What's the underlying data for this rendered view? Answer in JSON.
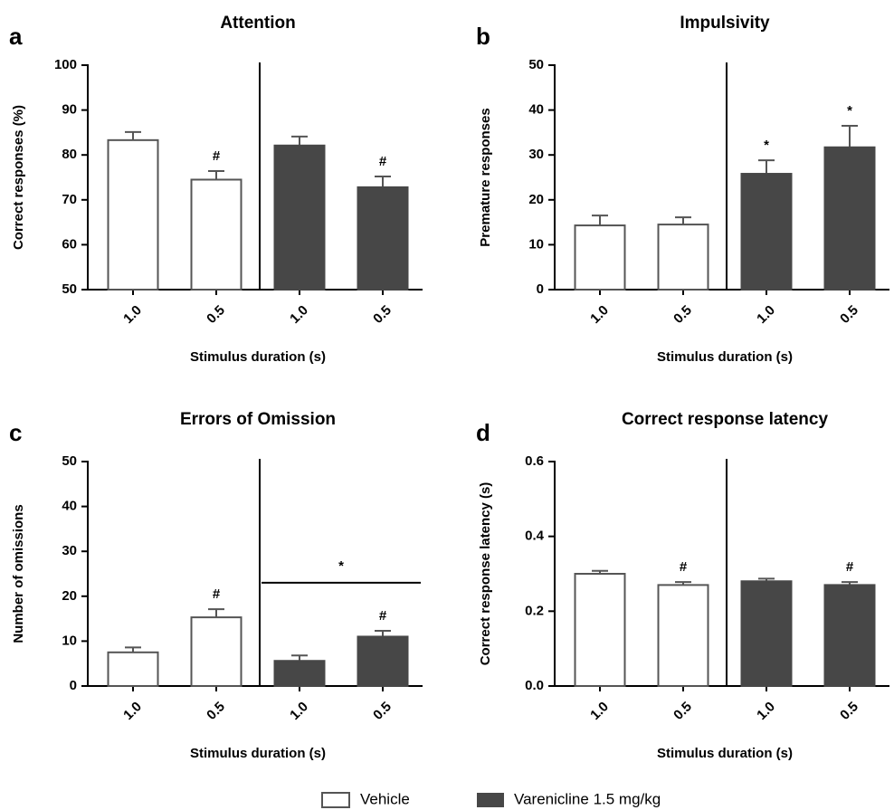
{
  "chart_data": [
    {
      "type": "bar",
      "panel_label": "a",
      "title": "Attention",
      "ylabel": "Correct responses (%)",
      "xlabel": "Stimulus duration (s)",
      "categories": [
        "1.0",
        "0.5",
        "1.0",
        "0.5"
      ],
      "series": [
        {
          "name": "Vehicle",
          "color": "#ffffff",
          "values": [
            83.3,
            74.5,
            null,
            null
          ],
          "errors": [
            1.8,
            1.9,
            null,
            null
          ]
        },
        {
          "name": "Varenicline 1.5 mg/kg",
          "color": "#474747",
          "values": [
            null,
            null,
            82.1,
            72.8
          ],
          "errors": [
            null,
            null,
            2.0,
            2.4
          ]
        }
      ],
      "ylim": [
        50,
        100
      ],
      "yticks": [
        50,
        60,
        70,
        80,
        90,
        100
      ],
      "annotations": [
        {
          "text": "#",
          "index": 1
        },
        {
          "text": "#",
          "index": 3
        }
      ]
    },
    {
      "type": "bar",
      "panel_label": "b",
      "title": "Impulsivity",
      "ylabel": "Premature responses",
      "xlabel": "Stimulus duration (s)",
      "categories": [
        "1.0",
        "0.5",
        "1.0",
        "0.5"
      ],
      "series": [
        {
          "name": "Vehicle",
          "color": "#ffffff",
          "values": [
            14.3,
            14.5,
            null,
            null
          ],
          "errors": [
            2.2,
            1.6,
            null,
            null
          ]
        },
        {
          "name": "Varenicline 1.5 mg/kg",
          "color": "#474747",
          "values": [
            null,
            null,
            25.8,
            31.7
          ],
          "errors": [
            null,
            null,
            3.0,
            4.8
          ]
        }
      ],
      "ylim": [
        0,
        50
      ],
      "yticks": [
        0,
        10,
        20,
        30,
        40,
        50
      ],
      "annotations": [
        {
          "text": "*",
          "index": 2
        },
        {
          "text": "*",
          "index": 3
        }
      ]
    },
    {
      "type": "bar",
      "panel_label": "c",
      "title": "Errors of Omission",
      "ylabel": "Number of omissions",
      "xlabel": "Stimulus duration (s)",
      "categories": [
        "1.0",
        "0.5",
        "1.0",
        "0.5"
      ],
      "series": [
        {
          "name": "Vehicle",
          "color": "#ffffff",
          "values": [
            7.5,
            15.3,
            null,
            null
          ],
          "errors": [
            1.1,
            1.8,
            null,
            null
          ]
        },
        {
          "name": "Varenicline 1.5 mg/kg",
          "color": "#474747",
          "values": [
            null,
            null,
            5.6,
            11.0
          ],
          "errors": [
            null,
            null,
            1.2,
            1.3
          ]
        }
      ],
      "ylim": [
        0,
        50
      ],
      "yticks": [
        0,
        10,
        20,
        30,
        40,
        50
      ],
      "annotations": [
        {
          "text": "#",
          "index": 1
        },
        {
          "text": "#",
          "index": 3
        },
        {
          "text": "*",
          "span": [
            2,
            3
          ],
          "y": 23
        }
      ]
    },
    {
      "type": "bar",
      "panel_label": "d",
      "title": "Correct response latency",
      "ylabel": "Correct response latency (s)",
      "xlabel": "Stimulus duration (s)",
      "categories": [
        "1.0",
        "0.5",
        "1.0",
        "0.5"
      ],
      "series": [
        {
          "name": "Vehicle",
          "color": "#ffffff",
          "values": [
            0.3,
            0.27,
            null,
            null
          ],
          "errors": [
            0.008,
            0.008,
            null,
            null
          ]
        },
        {
          "name": "Varenicline 1.5 mg/kg",
          "color": "#474747",
          "values": [
            null,
            null,
            0.28,
            0.27
          ],
          "errors": [
            null,
            null,
            0.007,
            0.008
          ]
        }
      ],
      "ylim": [
        0,
        0.6
      ],
      "yticks": [
        {
          "value": 0,
          "label": "0.0"
        },
        0.2,
        0.4,
        0.6
      ],
      "annotations": [
        {
          "text": "#",
          "index": 1
        },
        {
          "text": "#",
          "index": 3
        }
      ]
    }
  ]
}
